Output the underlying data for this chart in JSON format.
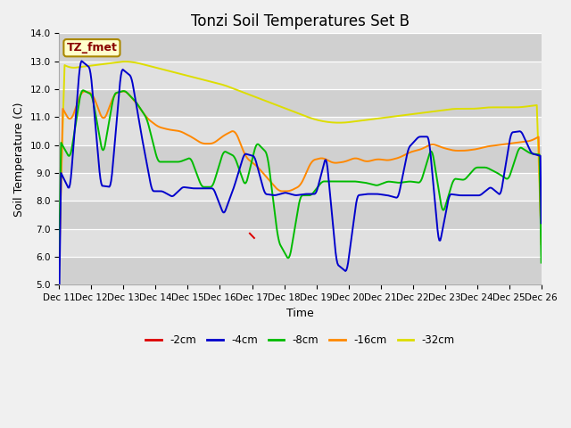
{
  "title": "Tonzi Soil Temperatures Set B",
  "xlabel": "Time",
  "ylabel": "Soil Temperature (C)",
  "ylim": [
    5.0,
    14.0
  ],
  "yticks": [
    5.0,
    6.0,
    7.0,
    8.0,
    9.0,
    10.0,
    11.0,
    12.0,
    13.0,
    14.0
  ],
  "xtick_labels": [
    "Dec 11",
    "Dec 12",
    "Dec 13",
    "Dec 14",
    "Dec 15",
    "Dec 16",
    "Dec 17",
    "Dec 18",
    "Dec 19",
    "Dec 20",
    "Dec 21",
    "Dec 22",
    "Dec 23",
    "Dec 24",
    "Dec 25",
    "Dec 26"
  ],
  "series_labels": [
    "-2cm",
    "-4cm",
    "-8cm",
    "-16cm",
    "-32cm"
  ],
  "series_colors": [
    "#dd0000",
    "#0000cc",
    "#00bb00",
    "#ff8800",
    "#dddd00"
  ],
  "legend_label": "TZ_fmet",
  "figsize": [
    6.4,
    4.8
  ],
  "dpi": 100,
  "background_color": "#f0f0f0",
  "plot_bg_color": "#e0e0e0",
  "grid_color": "#ffffff",
  "band_colors": [
    "#d0d0d0",
    "#e0e0e0"
  ],
  "title_fontsize": 12,
  "label_fontsize": 9,
  "tick_fontsize": 7.5,
  "y4_base": [
    9.1,
    8.35,
    13.05,
    12.75,
    8.55,
    8.5,
    12.75,
    12.45,
    10.3,
    8.35,
    8.35,
    8.15,
    8.5,
    8.45,
    8.45,
    8.45,
    7.5,
    8.5,
    9.7,
    9.6,
    8.25,
    8.2,
    8.3,
    8.2,
    8.25,
    8.25,
    9.65,
    5.75,
    5.45,
    8.2,
    8.25,
    8.25,
    8.2,
    8.1,
    9.9,
    10.3,
    10.3,
    6.35,
    8.25,
    8.2,
    8.2,
    8.2,
    8.5,
    8.2,
    10.45,
    10.5,
    9.7,
    9.6
  ],
  "y8_base": [
    10.2,
    9.5,
    12.0,
    11.8,
    9.6,
    11.85,
    11.95,
    11.55,
    10.95,
    9.4,
    9.4,
    9.4,
    9.55,
    8.5,
    8.5,
    9.8,
    9.6,
    8.5,
    10.1,
    9.7,
    6.55,
    5.85,
    8.2,
    8.2,
    8.7,
    8.7,
    8.7,
    8.7,
    8.65,
    8.55,
    8.7,
    8.65,
    8.7,
    8.65,
    9.95,
    7.5,
    8.8,
    8.75,
    9.2,
    9.2,
    9.0,
    8.75,
    9.95,
    9.7,
    9.65
  ],
  "y16_base": [
    11.5,
    10.8,
    11.95,
    11.85,
    10.8,
    11.85,
    11.95,
    11.5,
    10.95,
    10.65,
    10.55,
    10.5,
    10.3,
    10.05,
    10.05,
    10.35,
    10.55,
    9.55,
    9.25,
    8.8,
    8.35,
    8.35,
    8.55,
    9.45,
    9.55,
    9.35,
    9.4,
    9.55,
    9.4,
    9.5,
    9.45,
    9.55,
    9.75,
    9.85,
    10.05,
    9.9,
    9.8,
    9.8,
    9.85,
    9.95,
    10.0,
    10.05,
    10.1,
    10.15,
    10.35
  ],
  "y32_base": [
    12.95,
    12.75,
    12.8,
    12.85,
    12.9,
    12.95,
    13.0,
    12.95,
    12.85,
    12.75,
    12.65,
    12.55,
    12.45,
    12.35,
    12.25,
    12.15,
    12.0,
    11.85,
    11.7,
    11.55,
    11.4,
    11.25,
    11.1,
    10.95,
    10.85,
    10.8,
    10.8,
    10.85,
    10.9,
    10.95,
    11.0,
    11.05,
    11.1,
    11.15,
    11.2,
    11.25,
    11.3,
    11.3,
    11.3,
    11.35,
    11.35,
    11.35,
    11.35,
    11.4,
    11.45
  ]
}
